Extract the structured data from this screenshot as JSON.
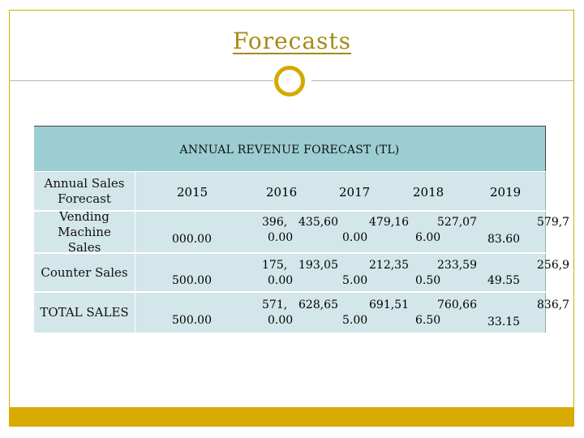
{
  "slide": {
    "title": "Forecasts",
    "table_title": "ANNUAL REVENUE FORECAST (TL)",
    "corner_label": "Annual Sales Forecast",
    "years": [
      "2015",
      "2016",
      "2017",
      "2018",
      "2019"
    ],
    "rows": [
      {
        "label": "Vending Machine Sales",
        "fragments": {
          "c2015": "000.00",
          "c2016_a": "396,",
          "c2016_b": "0.00",
          "c2017_a": "435,60",
          "c2017_b": "0.00",
          "c2018_a": "479,16",
          "c2018_b": "6.00",
          "c2019_a": "527,07",
          "c2019_b": "83.60",
          "tail": "579,7"
        }
      },
      {
        "label": "Counter Sales",
        "fragments": {
          "c2015": "500.00",
          "c2016_a": "175,",
          "c2016_b": "0.00",
          "c2017_a": "193,05",
          "c2017_b": "5.00",
          "c2018_a": "212,35",
          "c2018_b": "0.50",
          "c2019_a": "233,59",
          "c2019_b": "49.55",
          "tail": "256,9"
        }
      },
      {
        "label": "TOTAL SALES",
        "fragments": {
          "c2015": "500.00",
          "c2016_a": "571,",
          "c2016_b": "0.00",
          "c2017_a": "628,65",
          "c2017_b": "5.00",
          "c2018_a": "691,51",
          "c2018_b": "6.50",
          "c2019_a": "760,66",
          "c2019_b": "33.15",
          "tail": "836,7"
        }
      }
    ]
  }
}
